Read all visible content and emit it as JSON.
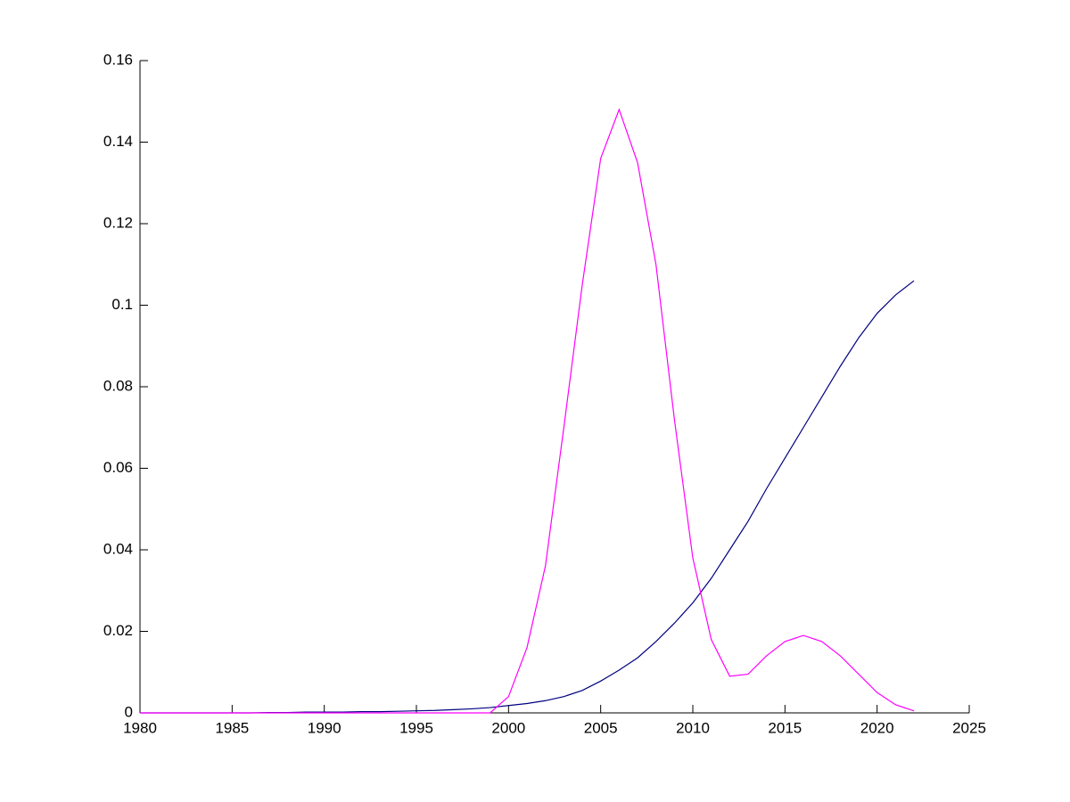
{
  "chart_data": {
    "type": "line",
    "x": [
      1980,
      1981,
      1982,
      1983,
      1984,
      1985,
      1986,
      1987,
      1988,
      1989,
      1990,
      1991,
      1992,
      1993,
      1994,
      1995,
      1996,
      1997,
      1998,
      1999,
      2000,
      2001,
      2002,
      2003,
      2004,
      2005,
      2006,
      2007,
      2008,
      2009,
      2010,
      2011,
      2012,
      2013,
      2014,
      2015,
      2016,
      2017,
      2018,
      2019,
      2020,
      2021,
      2022
    ],
    "series": [
      {
        "color": "#000080",
        "values": [
          0,
          0,
          0,
          0,
          0,
          0,
          0,
          0.0001,
          0.0001,
          0.0002,
          0.0002,
          0.0002,
          0.0003,
          0.0003,
          0.0004,
          0.0005,
          0.0006,
          0.0008,
          0.001,
          0.0013,
          0.0018,
          0.0023,
          0.003,
          0.004,
          0.0055,
          0.0078,
          0.0105,
          0.0135,
          0.0175,
          0.022,
          0.027,
          0.033,
          0.04,
          0.047,
          0.055,
          0.0625,
          0.07,
          0.0775,
          0.085,
          0.092,
          0.098,
          0.1025,
          0.106
        ]
      },
      {
        "color": "#ff00ff",
        "values": [
          0,
          0,
          0,
          0,
          0,
          0,
          0,
          0,
          0,
          0,
          0,
          0,
          0,
          0,
          0,
          0,
          0,
          0,
          0,
          0,
          0.004,
          0.016,
          0.036,
          0.07,
          0.105,
          0.136,
          0.148,
          0.135,
          0.11,
          0.072,
          0.038,
          0.018,
          0.009,
          0.0095,
          0.014,
          0.0175,
          0.019,
          0.0175,
          0.014,
          0.0095,
          0.005,
          0.002,
          0.0005
        ]
      }
    ],
    "xlim": [
      1980,
      2025
    ],
    "xticks": [
      1980,
      1985,
      1990,
      1995,
      2000,
      2005,
      2010,
      2015,
      2020,
      2025
    ],
    "ylim": [
      0,
      0.16
    ],
    "yticks": [
      0,
      0.02,
      0.04,
      0.06,
      0.08,
      0.1,
      0.12,
      0.14,
      0.16
    ]
  }
}
